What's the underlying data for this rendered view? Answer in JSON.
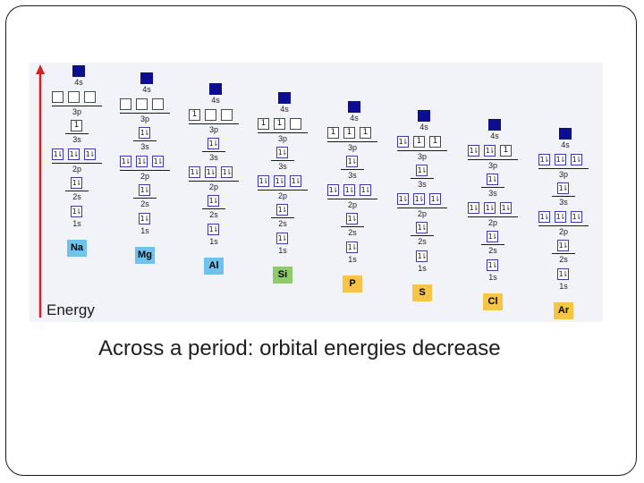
{
  "axis_label": "Energy",
  "caption": "Across a period: orbital energies decrease",
  "orbital_labels": {
    "s4": "4s",
    "p3": "3p",
    "s3": "3s",
    "p2": "2p",
    "s2": "2s",
    "s1": "1s"
  },
  "colors": {
    "arrow": "#d72020",
    "filled_4s": "#0d0d8f",
    "Na": "#6ec2ec",
    "Mg": "#6ec2ec",
    "Al": "#6ec2ec",
    "Si": "#8ec96a",
    "P": "#f6c545",
    "S": "#f6c545",
    "Cl": "#f6c545",
    "Ar": "#f6c545"
  },
  "elements": [
    {
      "symbol": "Na",
      "p3": [
        0,
        0,
        0
      ],
      "s3": 1
    },
    {
      "symbol": "Mg",
      "p3": [
        0,
        0,
        0
      ],
      "s3": 2
    },
    {
      "symbol": "Al",
      "p3": [
        1,
        0,
        0
      ],
      "s3": 2
    },
    {
      "symbol": "Si",
      "p3": [
        1,
        1,
        0
      ],
      "s3": 2
    },
    {
      "symbol": "P",
      "p3": [
        1,
        1,
        1
      ],
      "s3": 2
    },
    {
      "symbol": "S",
      "p3": [
        2,
        1,
        1
      ],
      "s3": 2
    },
    {
      "symbol": "Cl",
      "p3": [
        2,
        2,
        1
      ],
      "s3": 2
    },
    {
      "symbol": "Ar",
      "p3": [
        2,
        2,
        2
      ],
      "s3": 2
    }
  ]
}
